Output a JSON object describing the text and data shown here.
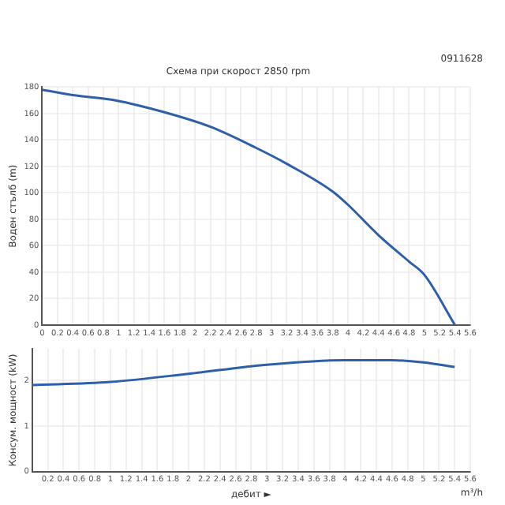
{
  "chart_data": [
    {
      "type": "line",
      "title": "Схема при скорост 2850 rpm",
      "ylabel": "Воден стълб (m)",
      "annotations": [
        "0911628"
      ],
      "x": [
        0,
        0.4,
        0.96,
        1.6,
        2.2,
        2.8,
        3.2,
        3.8,
        4.0,
        4.4,
        4.8,
        5.0,
        5.4
      ],
      "series": [
        {
          "color": "#2e5fa8",
          "values": [
            178,
            174,
            170,
            161,
            150,
            134,
            122,
            101,
            91,
            68,
            48,
            38,
            0
          ]
        }
      ],
      "xlim": [
        0,
        5.6
      ],
      "xticks": [
        0,
        0.2,
        0.4,
        0.6,
        0.8,
        1,
        1.2,
        1.4,
        1.6,
        1.8,
        2,
        2.2,
        2.4,
        2.6,
        2.8,
        3,
        3.2,
        3.4,
        3.6,
        3.8,
        4,
        4.2,
        4.4,
        4.6,
        4.8,
        5,
        5.2,
        5.4,
        5.6
      ],
      "ylim": [
        0,
        180
      ],
      "yticks": [
        0,
        20,
        40,
        60,
        80,
        100,
        120,
        140,
        160,
        180
      ],
      "grid": true,
      "legend": false,
      "marker": "none",
      "line_style": "solid"
    },
    {
      "type": "line",
      "xlabel": "дебит ►",
      "ylabel": "Консум. мощност (kW)",
      "annotations": [
        "m³/h"
      ],
      "x": [
        0,
        1,
        2,
        3,
        4,
        4.6,
        5,
        5.4
      ],
      "series": [
        {
          "color": "#2e5fa8",
          "values": [
            1.9,
            1.97,
            2.15,
            2.35,
            2.45,
            2.45,
            2.4,
            2.3
          ]
        }
      ],
      "xlim": [
        0,
        5.6
      ],
      "xticks": [
        {
          "value": 0,
          "label": null
        },
        0.2,
        0.4,
        0.6,
        0.8,
        1,
        1.2,
        1.4,
        1.6,
        1.8,
        2,
        2.2,
        2.4,
        2.6,
        2.8,
        3,
        3.2,
        3.4,
        3.6,
        3.8,
        4,
        4.2,
        4.4,
        4.6,
        4.8,
        5,
        5.2,
        5.4,
        5.6
      ],
      "ylim": [
        0,
        2.7
      ],
      "yticks": [
        0,
        1,
        2
      ],
      "grid": true,
      "legend": false,
      "marker": "none",
      "line_style": "solid"
    }
  ]
}
